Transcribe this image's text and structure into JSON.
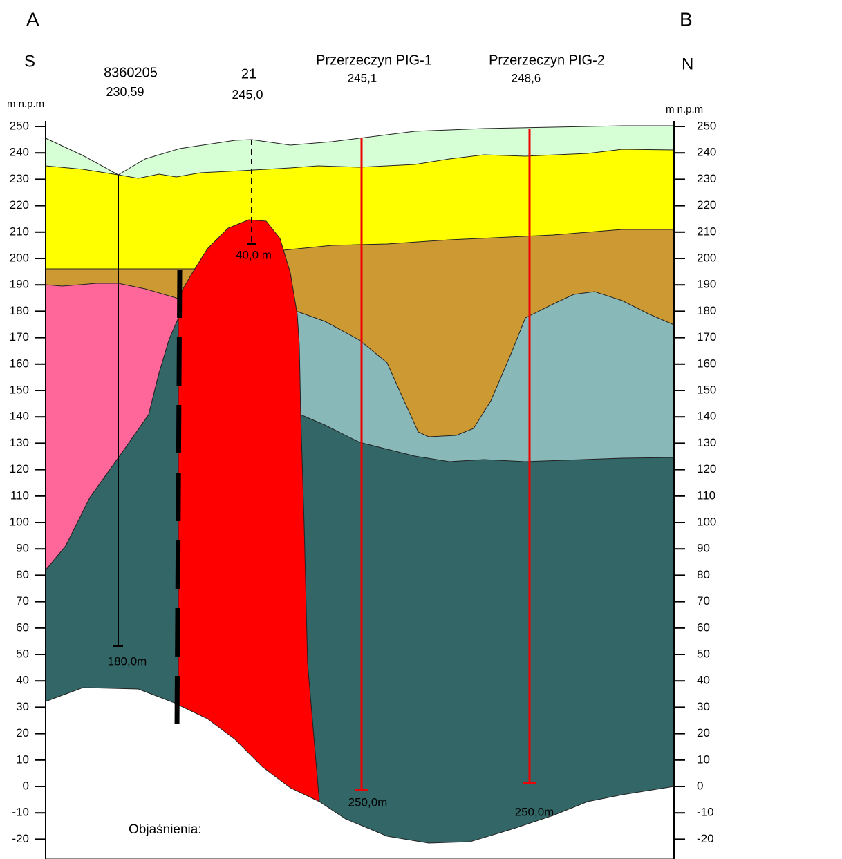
{
  "corners": {
    "left_top": "A",
    "right_top": "B",
    "left": "S",
    "right": "N"
  },
  "axis_unit": {
    "left": "m n.p.m",
    "right": "m n.p.m"
  },
  "axis_ticks": [
    250,
    240,
    230,
    220,
    210,
    200,
    190,
    180,
    170,
    160,
    150,
    140,
    130,
    120,
    110,
    100,
    90,
    80,
    70,
    60,
    50,
    40,
    30,
    20,
    10,
    0,
    -10,
    -20
  ],
  "boreholes": [
    {
      "name": "8360205",
      "elevation": "230,59",
      "depth": "180,0m"
    },
    {
      "name": "21",
      "elevation": "245,0",
      "depth": "40,0 m"
    },
    {
      "name": "Przerzeczyn PIG-1",
      "elevation": "245,1",
      "depth": "250,0m"
    },
    {
      "name": "Przerzeczyn PIG-2",
      "elevation": "248,6",
      "depth": "250,0m"
    }
  ],
  "legend_title": "Objaśnienia:"
}
